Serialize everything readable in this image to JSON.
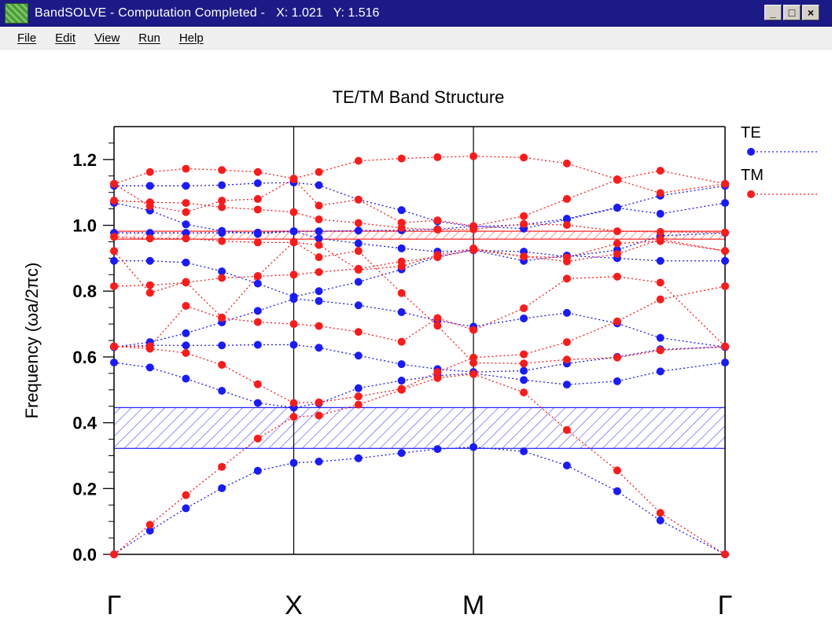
{
  "window": {
    "title": "BandSOLVE - Computation Completed -",
    "coords": "X: 1.021   Y: 1.516",
    "controls": {
      "minimize": "_",
      "maximize": "□",
      "close": "×"
    }
  },
  "menu": {
    "items": [
      "File",
      "Edit",
      "View",
      "Run",
      "Help"
    ]
  },
  "colors": {
    "te": "#1a1aff",
    "tm": "#ff1a1a",
    "titlebar": "#1c1a86"
  },
  "chart_data": {
    "type": "scatter",
    "title": "TE/TM Band Structure",
    "ylabel": "Frequency (ωa/2πc)",
    "xlabel": "",
    "ylim": [
      0,
      1.3
    ],
    "yticks": [
      "0.0",
      "0.2",
      "0.4",
      "0.6",
      "0.8",
      "1.0",
      "1.2"
    ],
    "ytick_values": [
      0,
      0.2,
      0.4,
      0.6,
      0.8,
      1.0,
      1.2
    ],
    "x_symmetry_points": [
      {
        "label": "Γ",
        "x": 0
      },
      {
        "label": "X",
        "x": 5
      },
      {
        "label": "M",
        "x": 10
      },
      {
        "label": "Γ",
        "x": 17
      }
    ],
    "xlim": [
      0,
      17
    ],
    "grid": false,
    "legend_position": "right",
    "band_gaps": [
      {
        "name": "TE",
        "ymin": 0.322,
        "ymax": 0.446
      },
      {
        "name": "TM",
        "ymin": 0.958,
        "ymax": 0.982
      }
    ],
    "series": [
      {
        "name": "TE",
        "x": [
          0,
          1,
          2,
          3,
          4,
          5,
          6,
          7,
          8,
          9,
          10,
          11,
          12,
          13,
          14,
          15,
          16,
          17
        ],
        "bands": [
          [
            0.0,
            0.072,
            0.14,
            0.201,
            0.254,
            0.278,
            0.282,
            0.292,
            0.308,
            0.32,
            0.326,
            0.313,
            0.27,
            0.192,
            0.103,
            0.0
          ],
          [
            0.583,
            0.568,
            0.534,
            0.497,
            0.46,
            0.446,
            0.459,
            0.505,
            0.528,
            0.543,
            0.55,
            0.53,
            0.516,
            0.526,
            0.556,
            0.583
          ],
          [
            0.63,
            0.635,
            0.635,
            0.635,
            0.637,
            0.637,
            0.628,
            0.604,
            0.578,
            0.563,
            0.554,
            0.558,
            0.58,
            0.6,
            0.623,
            0.63
          ],
          [
            0.63,
            0.645,
            0.672,
            0.705,
            0.74,
            0.776,
            0.77,
            0.757,
            0.736,
            0.71,
            0.692,
            0.717,
            0.734,
            0.702,
            0.658,
            0.63
          ],
          [
            0.892,
            0.892,
            0.887,
            0.86,
            0.823,
            0.783,
            0.8,
            0.828,
            0.866,
            0.905,
            0.925,
            0.892,
            0.908,
            0.9,
            0.892,
            0.892
          ],
          [
            0.977,
            0.977,
            0.977,
            0.977,
            0.978,
            0.982,
            0.96,
            0.945,
            0.93,
            0.92,
            0.924,
            0.92,
            0.905,
            0.925,
            0.968,
            0.977
          ],
          [
            1.068,
            1.045,
            1.003,
            0.983,
            0.974,
            0.982,
            0.982,
            0.984,
            0.985,
            0.988,
            0.997,
            0.99,
            1.018,
            1.053,
            1.035,
            1.068
          ],
          [
            1.12,
            1.12,
            1.12,
            1.122,
            1.128,
            1.13,
            1.122,
            1.078,
            1.046,
            1.012,
            0.996,
            1.002,
            1.02,
            1.054,
            1.09,
            1.12
          ]
        ],
        "band_x": [
          0,
          1,
          2,
          3,
          4,
          5,
          5.7,
          6.8,
          8,
          9,
          10,
          11.4,
          12.6,
          14,
          15.2,
          17
        ]
      },
      {
        "name": "TM",
        "x": [
          0,
          1,
          2,
          3,
          4,
          5,
          6,
          7,
          8,
          9,
          10,
          11,
          12,
          13,
          14,
          15,
          16,
          17
        ],
        "bands": [
          [
            0.0,
            0.09,
            0.18,
            0.266,
            0.352,
            0.418,
            0.422,
            0.455,
            0.5,
            0.536,
            0.548,
            0.492,
            0.378,
            0.255,
            0.126,
            0.0
          ],
          [
            0.632,
            0.625,
            0.612,
            0.576,
            0.517,
            0.46,
            0.462,
            0.48,
            0.503,
            0.554,
            0.598,
            0.608,
            0.645,
            0.708,
            0.775,
            0.815
          ],
          [
            0.632,
            0.632,
            0.755,
            0.718,
            0.706,
            0.7,
            0.694,
            0.676,
            0.646,
            0.718,
            0.682,
            0.748,
            0.838,
            0.844,
            0.826,
            0.632
          ],
          [
            0.815,
            0.818,
            0.826,
            0.84,
            0.845,
            0.85,
            0.858,
            0.868,
            0.89,
            0.903,
            0.925,
            0.905,
            0.89,
            0.913,
            0.957,
            0.922
          ],
          [
            0.922,
            0.795,
            0.828,
            0.72,
            0.846,
            0.95,
            0.903,
            0.922,
            0.794,
            0.695,
            0.582,
            0.58,
            0.592,
            0.598,
            0.62,
            0.632
          ],
          [
            0.965,
            0.96,
            0.96,
            0.952,
            0.948,
            0.948,
            0.94,
            0.865,
            0.875,
            0.91,
            0.93,
            0.905,
            0.902,
            0.945,
            0.952,
            0.922
          ],
          [
            1.075,
            1.07,
            1.068,
            1.055,
            1.048,
            1.04,
            1.018,
            1.007,
            0.992,
            0.987,
            0.988,
            1.004,
            1.001,
            0.982,
            0.98,
            0.978
          ],
          [
            1.126,
            1.162,
            1.172,
            1.168,
            1.162,
            1.142,
            1.162,
            1.196,
            1.203,
            1.207,
            1.21,
            1.206,
            1.188,
            1.14,
            1.166,
            1.126
          ],
          [
            1.126,
            1.058,
            1.04,
            1.075,
            1.08,
            1.14,
            1.06,
            1.078,
            1.008,
            1.015,
            0.998,
            1.028,
            1.08,
            1.138,
            1.098,
            1.126
          ]
        ],
        "band_x": [
          0,
          1,
          2,
          3,
          4,
          5,
          5.7,
          6.8,
          8,
          9,
          10,
          11.4,
          12.6,
          14,
          15.2,
          17
        ]
      }
    ]
  }
}
